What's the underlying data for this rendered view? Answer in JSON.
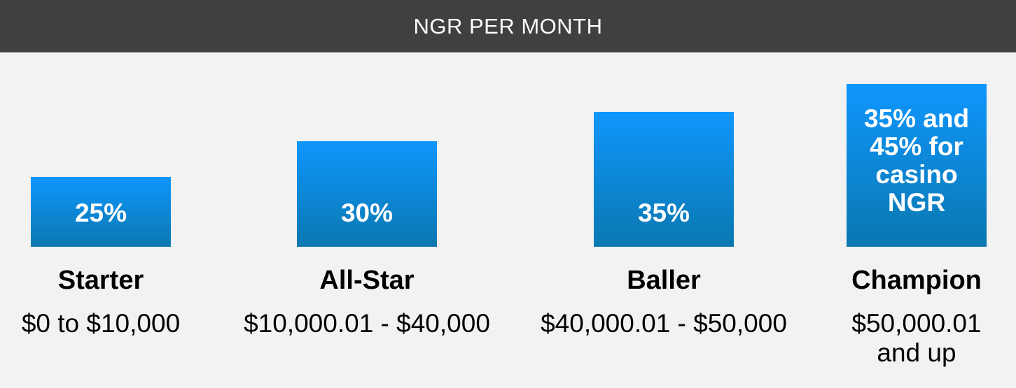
{
  "header": {
    "title": "NGR PER MONTH"
  },
  "colors": {
    "header_bg": "#404040",
    "bar_top": "#0f96fd",
    "bar_bottom": "#0a78b0",
    "background": "#f2f2f2"
  },
  "chart_data": {
    "type": "bar",
    "title": "NGR PER MONTH",
    "categories": [
      "Starter",
      "All-Star",
      "Baller",
      "Champion"
    ],
    "values": [
      25,
      30,
      35,
      35
    ],
    "bar_labels": [
      "25%",
      "30%",
      "35%",
      "35% and 45% for casino NGR"
    ],
    "ranges": [
      "$0 to $10,000",
      "$10,000.01 - $40,000",
      "$40,000.01 - $50,000",
      "$50,000.01 and up"
    ],
    "grid": false
  }
}
